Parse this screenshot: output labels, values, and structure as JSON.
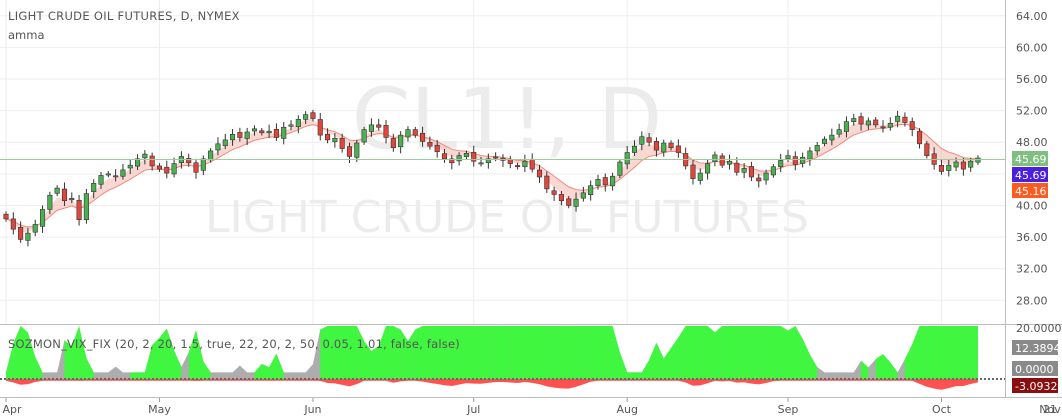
{
  "header": {
    "symbol_title": "LIGHT CRUDE OIL FUTURES, D, NYMEX",
    "indicator_label": "amma",
    "watermark_ticker": "CL1!, D",
    "watermark_name": "LIGHT CRUDE OIL FUTURES"
  },
  "oscillator": {
    "label": "SOZMON_VIX_FIX (20, 2, 20, 1.5, true, 22, 20, 2, 50, 0.05, 1.01, false, false)"
  },
  "price_badges": [
    {
      "value": "45.69",
      "color": "#7fbf7f",
      "text_color": "#ffffff"
    },
    {
      "value": "45.69",
      "color": "#4a1fe0",
      "text_color": "#ffffff"
    },
    {
      "value": "45.16",
      "color": "#ff5a1f",
      "text_color": "#ffffff"
    }
  ],
  "osc_badges": [
    {
      "value": "12.3894",
      "color": "#8a8a8a",
      "text_color": "#ffffff"
    },
    {
      "value": "0.0000",
      "color": "#8a8a8a",
      "text_color": "#ffffff"
    },
    {
      "value": "-3.0932",
      "color": "#8b0d0d",
      "text_color": "#ffffff"
    }
  ],
  "colors": {
    "up_candle": "#4caf50",
    "down_candle": "#e0463c",
    "ribbon": "#f4b8b0",
    "grid": "#eeeeee",
    "osc_green": "#33ff33",
    "osc_gray": "#999999",
    "osc_red": "#ff3333"
  },
  "chart_data": {
    "type": "candlestick",
    "y_axis_ticks": [
      "64.00",
      "60.00",
      "56.00",
      "52.00",
      "48.00",
      "44.00",
      "40.00",
      "36.00",
      "32.00",
      "28.00"
    ],
    "y_range": [
      25,
      66
    ],
    "x_axis_ticks": [
      {
        "label": "Apr",
        "day": 0
      },
      {
        "label": "May",
        "day": 21
      },
      {
        "label": "Jun",
        "day": 42
      },
      {
        "label": "Jul",
        "day": 64
      },
      {
        "label": "Aug",
        "day": 85
      },
      {
        "label": "Sep",
        "day": 107
      },
      {
        "label": "Oct",
        "day": 128
      },
      {
        "label": "Nov",
        "day": 150
      },
      {
        "label": "21",
        "day": 164
      }
    ],
    "closes": [
      38.3,
      37.0,
      35.7,
      36.5,
      37.6,
      39.5,
      41.3,
      42.2,
      40.6,
      40.9,
      38.2,
      41.5,
      42.8,
      43.8,
      44.0,
      43.7,
      44.5,
      45.1,
      45.9,
      46.5,
      45.0,
      44.6,
      44.1,
      45.3,
      46.2,
      45.4,
      44.2,
      45.9,
      46.9,
      47.8,
      48.3,
      49.0,
      48.6,
      49.3,
      49.7,
      49.2,
      49.4,
      48.6,
      49.9,
      50.2,
      50.9,
      51.5,
      51.0,
      48.9,
      48.3,
      48.5,
      47.2,
      46.2,
      47.9,
      49.6,
      50.2,
      49.9,
      48.6,
      47.3,
      48.9,
      49.6,
      48.9,
      48.1,
      47.5,
      46.8,
      45.9,
      45.4,
      46.3,
      46.6,
      45.6,
      45.4,
      45.9,
      46.1,
      45.7,
      45.3,
      44.9,
      45.6,
      44.6,
      43.6,
      42.1,
      41.4,
      40.6,
      40.0,
      40.8,
      41.6,
      42.5,
      43.3,
      42.6,
      43.7,
      45.5,
      46.7,
      47.5,
      48.7,
      48.0,
      47.0,
      47.9,
      47.3,
      46.7,
      45.0,
      43.4,
      44.1,
      45.3,
      46.4,
      45.1,
      45.6,
      44.2,
      44.7,
      43.6,
      43.1,
      44.1,
      44.9,
      45.7,
      46.3,
      45.2,
      46.1,
      46.9,
      47.6,
      48.4,
      48.9,
      49.6,
      50.6,
      51.0,
      50.3,
      50.7,
      50.2,
      49.9,
      50.4,
      51.3,
      50.5,
      49.6,
      47.8,
      46.3,
      45.2,
      44.3,
      45.1,
      45.5,
      44.6,
      45.6,
      46.0
    ]
  }
}
